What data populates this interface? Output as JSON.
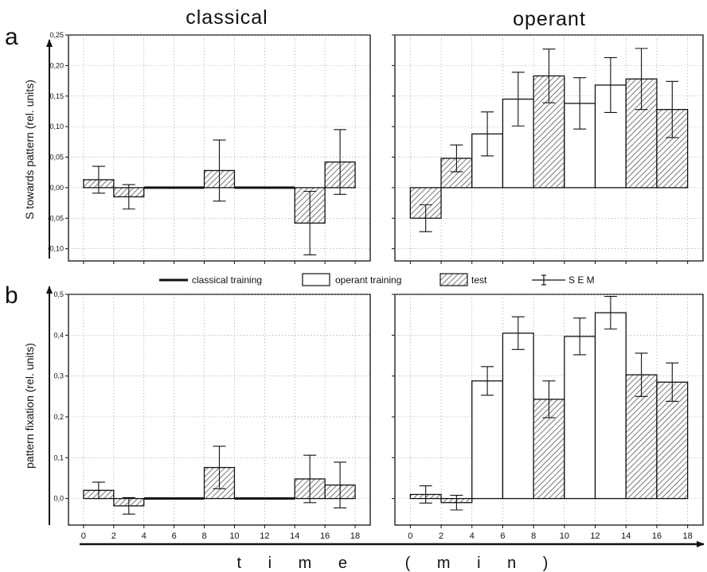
{
  "figure": {
    "column_titles": [
      "classical",
      "operant"
    ],
    "panel_letters": [
      "a",
      "b"
    ],
    "x_axis_title": "t i m e   ( m i n )",
    "legend": {
      "items": [
        {
          "label": "classical training",
          "icon": "thick-line-swatch"
        },
        {
          "label": "operant training",
          "icon": "white-box-swatch"
        },
        {
          "label": "test",
          "icon": "hatched-box-swatch"
        },
        {
          "label": "S E M",
          "icon": "error-bar-swatch"
        }
      ]
    },
    "colors": {
      "operant_fill": "#ffffff",
      "test_fill_hatch": "#555555",
      "line": "#111111",
      "grid": "#9a9a9a"
    }
  },
  "chart_data": [
    {
      "id": "a-classical",
      "type": "bar",
      "panel": "a",
      "column": "classical",
      "ylabel": "S towards pattern (rel. units)",
      "ylim": [
        -0.12,
        0.25
      ],
      "yticks": [
        -0.1,
        -0.05,
        0.0,
        0.05,
        0.1,
        0.15,
        0.2,
        0.25
      ],
      "ytick_labels": [
        "-0,10",
        "-0,05",
        "0,00",
        "0,05",
        "0,10",
        "0,15",
        "0,20",
        "0,25"
      ],
      "xlim": [
        -1,
        19
      ],
      "xticks": [
        0,
        2,
        4,
        6,
        8,
        10,
        12,
        14,
        16,
        18
      ],
      "xtick_labels": [],
      "grid": true,
      "bars": [
        {
          "x0": 0,
          "x1": 2,
          "value": 0.013,
          "sem": 0.022,
          "condition": "test"
        },
        {
          "x0": 2,
          "x1": 4,
          "value": -0.015,
          "sem": 0.02,
          "condition": "test"
        },
        {
          "x0": 4,
          "x1": 8,
          "value": 0.0,
          "sem": null,
          "condition": "classical training"
        },
        {
          "x0": 8,
          "x1": 10,
          "value": 0.028,
          "sem": 0.05,
          "condition": "test"
        },
        {
          "x0": 10,
          "x1": 14,
          "value": 0.0,
          "sem": null,
          "condition": "classical training"
        },
        {
          "x0": 14,
          "x1": 16,
          "value": -0.058,
          "sem": 0.052,
          "condition": "test"
        },
        {
          "x0": 16,
          "x1": 18,
          "value": 0.042,
          "sem": 0.053,
          "condition": "test"
        }
      ]
    },
    {
      "id": "a-operant",
      "type": "bar",
      "panel": "a",
      "column": "operant",
      "ylim": [
        -0.12,
        0.25
      ],
      "yticks": [
        -0.1,
        -0.05,
        0.0,
        0.05,
        0.1,
        0.15,
        0.2,
        0.25
      ],
      "ytick_labels": [],
      "xlim": [
        -1,
        19
      ],
      "xticks": [
        0,
        2,
        4,
        6,
        8,
        10,
        12,
        14,
        16,
        18
      ],
      "xtick_labels": [],
      "grid": true,
      "bars": [
        {
          "x0": 0,
          "x1": 2,
          "value": -0.05,
          "sem": 0.022,
          "condition": "test"
        },
        {
          "x0": 2,
          "x1": 4,
          "value": 0.048,
          "sem": 0.022,
          "condition": "test"
        },
        {
          "x0": 4,
          "x1": 6,
          "value": 0.088,
          "sem": 0.036,
          "condition": "operant training"
        },
        {
          "x0": 6,
          "x1": 8,
          "value": 0.145,
          "sem": 0.044,
          "condition": "operant training"
        },
        {
          "x0": 8,
          "x1": 10,
          "value": 0.183,
          "sem": 0.044,
          "condition": "test"
        },
        {
          "x0": 10,
          "x1": 12,
          "value": 0.138,
          "sem": 0.042,
          "condition": "operant training"
        },
        {
          "x0": 12,
          "x1": 14,
          "value": 0.168,
          "sem": 0.045,
          "condition": "operant training"
        },
        {
          "x0": 14,
          "x1": 16,
          "value": 0.178,
          "sem": 0.05,
          "condition": "test"
        },
        {
          "x0": 16,
          "x1": 18,
          "value": 0.128,
          "sem": 0.046,
          "condition": "test"
        }
      ]
    },
    {
      "id": "b-classical",
      "type": "bar",
      "panel": "b",
      "column": "classical",
      "ylabel": "pattern fixation (rel. units)",
      "ylim": [
        -0.065,
        0.5
      ],
      "yticks": [
        0.0,
        0.1,
        0.2,
        0.3,
        0.4,
        0.5
      ],
      "ytick_labels": [
        "0,0",
        "0,1",
        "0,2",
        "0,3",
        "0,4",
        "0,5"
      ],
      "xlim": [
        -1,
        19
      ],
      "xticks": [
        0,
        2,
        4,
        6,
        8,
        10,
        12,
        14,
        16,
        18
      ],
      "xtick_labels": [
        "0",
        "2",
        "4",
        "6",
        "8",
        "10",
        "12",
        "14",
        "16",
        "18"
      ],
      "grid": true,
      "bars": [
        {
          "x0": 0,
          "x1": 2,
          "value": 0.02,
          "sem": 0.02,
          "condition": "test"
        },
        {
          "x0": 2,
          "x1": 4,
          "value": -0.018,
          "sem": 0.02,
          "condition": "test"
        },
        {
          "x0": 4,
          "x1": 8,
          "value": 0.0,
          "sem": null,
          "condition": "classical training"
        },
        {
          "x0": 8,
          "x1": 10,
          "value": 0.076,
          "sem": 0.052,
          "condition": "test"
        },
        {
          "x0": 10,
          "x1": 14,
          "value": 0.0,
          "sem": null,
          "condition": "classical training"
        },
        {
          "x0": 14,
          "x1": 16,
          "value": 0.048,
          "sem": 0.058,
          "condition": "test"
        },
        {
          "x0": 16,
          "x1": 18,
          "value": 0.033,
          "sem": 0.056,
          "condition": "test"
        }
      ]
    },
    {
      "id": "b-operant",
      "type": "bar",
      "panel": "b",
      "column": "operant",
      "ylim": [
        -0.065,
        0.5
      ],
      "yticks": [
        0.0,
        0.1,
        0.2,
        0.3,
        0.4,
        0.5
      ],
      "ytick_labels": [],
      "xlim": [
        -1,
        19
      ],
      "xticks": [
        0,
        2,
        4,
        6,
        8,
        10,
        12,
        14,
        16,
        18
      ],
      "xtick_labels": [
        "0",
        "2",
        "4",
        "6",
        "8",
        "10",
        "12",
        "14",
        "16",
        "18"
      ],
      "grid": true,
      "bars": [
        {
          "x0": 0,
          "x1": 2,
          "value": 0.01,
          "sem": 0.021,
          "condition": "test"
        },
        {
          "x0": 2,
          "x1": 4,
          "value": -0.01,
          "sem": 0.018,
          "condition": "test"
        },
        {
          "x0": 4,
          "x1": 6,
          "value": 0.288,
          "sem": 0.035,
          "condition": "operant training"
        },
        {
          "x0": 6,
          "x1": 8,
          "value": 0.405,
          "sem": 0.04,
          "condition": "operant training"
        },
        {
          "x0": 8,
          "x1": 10,
          "value": 0.243,
          "sem": 0.045,
          "condition": "test"
        },
        {
          "x0": 10,
          "x1": 12,
          "value": 0.397,
          "sem": 0.045,
          "condition": "operant training"
        },
        {
          "x0": 12,
          "x1": 14,
          "value": 0.455,
          "sem": 0.04,
          "condition": "operant training"
        },
        {
          "x0": 14,
          "x1": 16,
          "value": 0.303,
          "sem": 0.053,
          "condition": "test"
        },
        {
          "x0": 16,
          "x1": 18,
          "value": 0.285,
          "sem": 0.047,
          "condition": "test"
        }
      ]
    }
  ]
}
